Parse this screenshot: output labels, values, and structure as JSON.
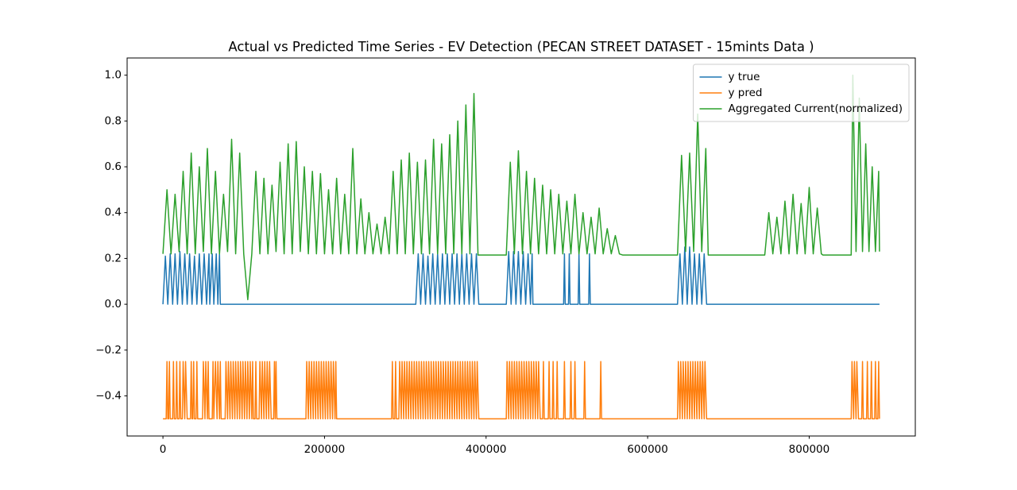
{
  "chart_data": {
    "type": "line",
    "title": "Actual vs Predicted Time Series - EV Detection (PECAN STREET DATASET - 15mints Data )",
    "xlim": [
      -44350,
      931350
    ],
    "ylim": [
      -0.575,
      1.075
    ],
    "xticks": [
      0,
      200000,
      400000,
      600000,
      800000
    ],
    "yticks": [
      {
        "value": -0.4,
        "label": "−0.4"
      },
      {
        "value": -0.2,
        "label": "−0.2"
      },
      {
        "value": 0,
        "label": "0.0"
      },
      0.2,
      0.4,
      0.6,
      0.8,
      {
        "value": 1,
        "label": "1.0"
      }
    ],
    "legend": "upper right",
    "grid": false,
    "series": [
      {
        "name": "y true",
        "color": "#1f77b4",
        "x": [
          0,
          3000,
          6000,
          9000,
          12000,
          15000,
          18000,
          21000,
          24000,
          27000,
          30000,
          33000,
          36000,
          39000,
          42000,
          45000,
          48000,
          51000,
          54000,
          57000,
          58000,
          61000,
          63000,
          66000,
          68000,
          70000,
          71000,
          313000,
          316000,
          319000,
          322000,
          325000,
          328000,
          331000,
          334000,
          337000,
          340000,
          343000,
          346000,
          349000,
          352000,
          355000,
          358000,
          361000,
          364000,
          367000,
          370000,
          373000,
          376000,
          379000,
          382000,
          385000,
          388000,
          391000,
          425000,
          428000,
          431000,
          434000,
          437000,
          440000,
          443000,
          446000,
          449000,
          452000,
          455000,
          457000,
          458000,
          496000,
          497000,
          498000,
          502000,
          503000,
          504000,
          514000,
          515000,
          516000,
          527000,
          528000,
          529000,
          637000,
          640000,
          643000,
          646000,
          649000,
          652000,
          655000,
          658000,
          661000,
          664000,
          667000,
          670000,
          673000,
          887000
        ],
        "values": [
          0,
          0.21,
          0,
          0.22,
          0,
          0.22,
          0,
          0.23,
          0,
          0.22,
          0,
          0.22,
          0,
          0.21,
          0,
          0.22,
          0,
          0.22,
          0,
          0.22,
          0,
          0.22,
          0,
          0.22,
          0,
          0.22,
          0,
          0,
          0.22,
          0,
          0.22,
          0,
          0.21,
          0,
          0.22,
          0,
          0.22,
          0,
          0.22,
          0,
          0.22,
          0,
          0.22,
          0,
          0.22,
          0,
          0.22,
          0,
          0.22,
          0,
          0.22,
          0,
          0.22,
          0,
          0,
          0.23,
          0,
          0.23,
          0,
          0.23,
          0,
          0.23,
          0,
          0.22,
          0,
          0.22,
          0,
          0,
          0.22,
          0,
          0,
          0.22,
          0,
          0,
          0.22,
          0,
          0,
          0.22,
          0,
          0,
          0.22,
          0,
          0.25,
          0,
          0.25,
          0,
          0.22,
          0,
          0.22,
          0,
          0.22,
          0,
          0
        ]
      },
      {
        "name": "y pred",
        "color": "#ff7f0e",
        "x": [
          0,
          4000,
          5000,
          6000,
          7000,
          8000,
          9000,
          12000,
          13000,
          14000,
          16000,
          17000,
          18000,
          20000,
          21000,
          22000,
          24000,
          25000,
          27000,
          28000,
          30000,
          34000,
          35000,
          36000,
          37000,
          38000,
          39000,
          41000,
          42000,
          43000,
          49000,
          50000,
          52000,
          53000,
          55000,
          56000,
          57000,
          61000,
          62000,
          63000,
          65000,
          67000,
          68000,
          70000,
          71000,
          72000,
          77000,
          78000,
          80000,
          81000,
          83000,
          84000,
          86000,
          87000,
          89000,
          90000,
          92000,
          93000,
          95000,
          96000,
          98000,
          99000,
          101000,
          102000,
          104000,
          105000,
          107000,
          108000,
          110000,
          111000,
          112000,
          114000,
          115000,
          116000,
          119000,
          120000,
          122000,
          123000,
          125000,
          126000,
          128000,
          129000,
          131000,
          132000,
          134000,
          137000,
          138000,
          139000,
          140000,
          141000,
          177000,
          178000,
          180000,
          181000,
          183000,
          184000,
          186000,
          187000,
          189000,
          190000,
          192000,
          193000,
          195000,
          196000,
          198000,
          199000,
          201000,
          202000,
          204000,
          205000,
          207000,
          208000,
          210000,
          211000,
          213000,
          214000,
          215000,
          283000,
          284000,
          285000,
          287000,
          288000,
          289000,
          292000,
          293000,
          295000,
          296000,
          298000,
          299000,
          301000,
          302000,
          304000,
          305000,
          307000,
          308000,
          310000,
          311000,
          313000,
          314000,
          316000,
          317000,
          319000,
          320000,
          322000,
          323000,
          325000,
          326000,
          328000,
          329000,
          331000,
          332000,
          334000,
          335000,
          337000,
          338000,
          340000,
          341000,
          343000,
          344000,
          346000,
          347000,
          349000,
          350000,
          352000,
          353000,
          355000,
          356000,
          358000,
          359000,
          361000,
          362000,
          364000,
          365000,
          367000,
          368000,
          370000,
          371000,
          373000,
          374000,
          376000,
          377000,
          379000,
          380000,
          382000,
          383000,
          385000,
          386000,
          388000,
          389000,
          391000,
          425000,
          426000,
          428000,
          429000,
          431000,
          432000,
          434000,
          435000,
          437000,
          438000,
          440000,
          441000,
          443000,
          444000,
          446000,
          447000,
          449000,
          450000,
          452000,
          453000,
          455000,
          456000,
          458000,
          459000,
          461000,
          462000,
          464000,
          465000,
          467000,
          470000,
          471000,
          472000,
          477000,
          478000,
          479000,
          482000,
          483000,
          484000,
          487000,
          488000,
          489000,
          496000,
          497000,
          498000,
          504000,
          505000,
          506000,
          509000,
          510000,
          511000,
          521000,
          522000,
          523000,
          541000,
          542000,
          543000,
          637000,
          638000,
          640000,
          641000,
          643000,
          644000,
          646000,
          647000,
          649000,
          650000,
          652000,
          653000,
          655000,
          656000,
          658000,
          659000,
          661000,
          662000,
          664000,
          665000,
          667000,
          668000,
          670000,
          671000,
          673000,
          852000,
          853000,
          855000,
          856000,
          858000,
          859000,
          861000,
          865000,
          866000,
          867000,
          871000,
          872000,
          873000,
          876000,
          877000,
          878000,
          881000,
          882000,
          883000,
          885000,
          886000,
          887000
        ],
        "values": [
          -0.5,
          -0.5,
          -0.25,
          -0.5,
          -0.5,
          -0.25,
          -0.5,
          -0.5,
          -0.25,
          -0.5,
          -0.5,
          -0.25,
          -0.5,
          -0.5,
          -0.25,
          -0.5,
          -0.5,
          -0.25,
          -0.5,
          -0.25,
          -0.5,
          -0.5,
          -0.25,
          -0.5,
          -0.5,
          -0.25,
          -0.5,
          -0.5,
          -0.25,
          -0.5,
          -0.5,
          -0.25,
          -0.5,
          -0.25,
          -0.5,
          -0.25,
          -0.5,
          -0.5,
          -0.25,
          -0.5,
          -0.25,
          -0.5,
          -0.25,
          -0.5,
          -0.25,
          -0.5,
          -0.5,
          -0.25,
          -0.5,
          -0.25,
          -0.5,
          -0.25,
          -0.5,
          -0.25,
          -0.5,
          -0.25,
          -0.5,
          -0.25,
          -0.5,
          -0.25,
          -0.5,
          -0.25,
          -0.5,
          -0.25,
          -0.5,
          -0.25,
          -0.5,
          -0.25,
          -0.5,
          -0.25,
          -0.5,
          -0.5,
          -0.25,
          -0.5,
          -0.5,
          -0.25,
          -0.5,
          -0.25,
          -0.5,
          -0.25,
          -0.5,
          -0.25,
          -0.5,
          -0.25,
          -0.5,
          -0.5,
          -0.25,
          -0.5,
          -0.25,
          -0.5,
          -0.5,
          -0.25,
          -0.5,
          -0.25,
          -0.5,
          -0.25,
          -0.5,
          -0.25,
          -0.5,
          -0.25,
          -0.5,
          -0.25,
          -0.5,
          -0.25,
          -0.5,
          -0.25,
          -0.5,
          -0.25,
          -0.5,
          -0.25,
          -0.5,
          -0.25,
          -0.5,
          -0.25,
          -0.5,
          -0.25,
          -0.5,
          -0.5,
          -0.25,
          -0.5,
          -0.5,
          -0.25,
          -0.5,
          -0.5,
          -0.25,
          -0.5,
          -0.25,
          -0.5,
          -0.25,
          -0.5,
          -0.25,
          -0.5,
          -0.25,
          -0.5,
          -0.25,
          -0.5,
          -0.25,
          -0.5,
          -0.25,
          -0.5,
          -0.25,
          -0.5,
          -0.25,
          -0.5,
          -0.25,
          -0.5,
          -0.25,
          -0.5,
          -0.25,
          -0.5,
          -0.25,
          -0.5,
          -0.25,
          -0.5,
          -0.25,
          -0.5,
          -0.25,
          -0.5,
          -0.25,
          -0.5,
          -0.25,
          -0.5,
          -0.25,
          -0.5,
          -0.25,
          -0.5,
          -0.25,
          -0.5,
          -0.25,
          -0.5,
          -0.25,
          -0.5,
          -0.25,
          -0.5,
          -0.25,
          -0.5,
          -0.25,
          -0.5,
          -0.25,
          -0.5,
          -0.25,
          -0.5,
          -0.25,
          -0.5,
          -0.25,
          -0.5,
          -0.25,
          -0.5,
          -0.25,
          -0.5,
          -0.5,
          -0.25,
          -0.5,
          -0.25,
          -0.5,
          -0.25,
          -0.5,
          -0.25,
          -0.5,
          -0.25,
          -0.5,
          -0.25,
          -0.5,
          -0.25,
          -0.5,
          -0.25,
          -0.5,
          -0.25,
          -0.5,
          -0.25,
          -0.5,
          -0.25,
          -0.5,
          -0.25,
          -0.5,
          -0.25,
          -0.5,
          -0.25,
          -0.5,
          -0.5,
          -0.25,
          -0.5,
          -0.5,
          -0.25,
          -0.5,
          -0.5,
          -0.25,
          -0.5,
          -0.5,
          -0.25,
          -0.5,
          -0.5,
          -0.25,
          -0.5,
          -0.5,
          -0.25,
          -0.5,
          -0.5,
          -0.25,
          -0.5,
          -0.5,
          -0.25,
          -0.5,
          -0.5,
          -0.25,
          -0.5,
          -0.5,
          -0.25,
          -0.5,
          -0.25,
          -0.5,
          -0.25,
          -0.5,
          -0.25,
          -0.5,
          -0.25,
          -0.5,
          -0.25,
          -0.5,
          -0.25,
          -0.5,
          -0.25,
          -0.5,
          -0.25,
          -0.5,
          -0.25,
          -0.5,
          -0.25,
          -0.5,
          -0.25,
          -0.5,
          -0.5,
          -0.25,
          -0.5,
          -0.25,
          -0.5,
          -0.25,
          -0.5,
          -0.5,
          -0.25,
          -0.5,
          -0.5,
          -0.25,
          -0.5,
          -0.5,
          -0.25,
          -0.5,
          -0.5,
          -0.25,
          -0.5,
          -0.5,
          -0.25,
          -0.5
        ]
      },
      {
        "name": "Aggregated Current(normalized)",
        "color": "#2ca02c",
        "x": [
          0,
          5000,
          10000,
          15000,
          20000,
          25000,
          30000,
          35000,
          40000,
          45000,
          50000,
          55000,
          60000,
          65000,
          70000,
          75000,
          80000,
          85000,
          90000,
          95000,
          100000,
          105000,
          110000,
          115000,
          120000,
          125000,
          130000,
          135000,
          140000,
          145000,
          150000,
          155000,
          160000,
          165000,
          170000,
          175000,
          180000,
          185000,
          190000,
          195000,
          200000,
          205000,
          210000,
          215000,
          220000,
          225000,
          230000,
          235000,
          240000,
          245000,
          250000,
          255000,
          260000,
          265000,
          270000,
          275000,
          280000,
          285000,
          290000,
          295000,
          300000,
          305000,
          310000,
          315000,
          320000,
          325000,
          330000,
          335000,
          340000,
          345000,
          350000,
          355000,
          360000,
          365000,
          370000,
          375000,
          380000,
          385000,
          390000,
          425000,
          430000,
          435000,
          440000,
          445000,
          450000,
          455000,
          460000,
          465000,
          470000,
          475000,
          480000,
          485000,
          490000,
          495000,
          500000,
          505000,
          510000,
          515000,
          520000,
          525000,
          530000,
          535000,
          540000,
          545000,
          550000,
          555000,
          560000,
          565000,
          569000,
          637000,
          642000,
          647000,
          652000,
          657000,
          662000,
          667000,
          672000,
          675000,
          745000,
          750000,
          755000,
          760000,
          765000,
          770000,
          775000,
          780000,
          785000,
          790000,
          795000,
          800000,
          805000,
          810000,
          815000,
          817000,
          852000,
          854000,
          858000,
          862000,
          866000,
          870000,
          874000,
          878000,
          882000,
          886000,
          887000
        ],
        "values": [
          0.22,
          0.5,
          0.22,
          0.48,
          0.23,
          0.58,
          0.22,
          0.66,
          0.22,
          0.6,
          0.23,
          0.68,
          0.22,
          0.58,
          0.22,
          0.48,
          0.23,
          0.72,
          0.22,
          0.66,
          0.22,
          0.02,
          0.22,
          0.58,
          0.22,
          0.55,
          0.22,
          0.52,
          0.23,
          0.62,
          0.22,
          0.7,
          0.22,
          0.71,
          0.23,
          0.6,
          0.22,
          0.58,
          0.22,
          0.57,
          0.22,
          0.5,
          0.22,
          0.55,
          0.22,
          0.48,
          0.22,
          0.68,
          0.22,
          0.46,
          0.22,
          0.4,
          0.22,
          0.35,
          0.22,
          0.38,
          0.22,
          0.58,
          0.22,
          0.63,
          0.22,
          0.66,
          0.22,
          0.62,
          0.22,
          0.63,
          0.22,
          0.72,
          0.22,
          0.7,
          0.22,
          0.74,
          0.22,
          0.8,
          0.22,
          0.87,
          0.22,
          0.92,
          0.215,
          0.215,
          0.62,
          0.22,
          0.67,
          0.22,
          0.58,
          0.22,
          0.55,
          0.22,
          0.52,
          0.22,
          0.5,
          0.22,
          0.48,
          0.22,
          0.45,
          0.22,
          0.48,
          0.22,
          0.4,
          0.22,
          0.38,
          0.22,
          0.42,
          0.22,
          0.33,
          0.22,
          0.3,
          0.22,
          0.215,
          0.215,
          0.65,
          0.23,
          0.66,
          0.23,
          0.83,
          0.23,
          0.68,
          0.215,
          0.215,
          0.4,
          0.22,
          0.38,
          0.22,
          0.45,
          0.22,
          0.48,
          0.22,
          0.44,
          0.22,
          0.51,
          0.22,
          0.42,
          0.22,
          0.215,
          0.215,
          1.0,
          0.23,
          0.9,
          0.23,
          0.7,
          0.23,
          0.6,
          0.23,
          0.58,
          0.23
        ]
      }
    ]
  }
}
